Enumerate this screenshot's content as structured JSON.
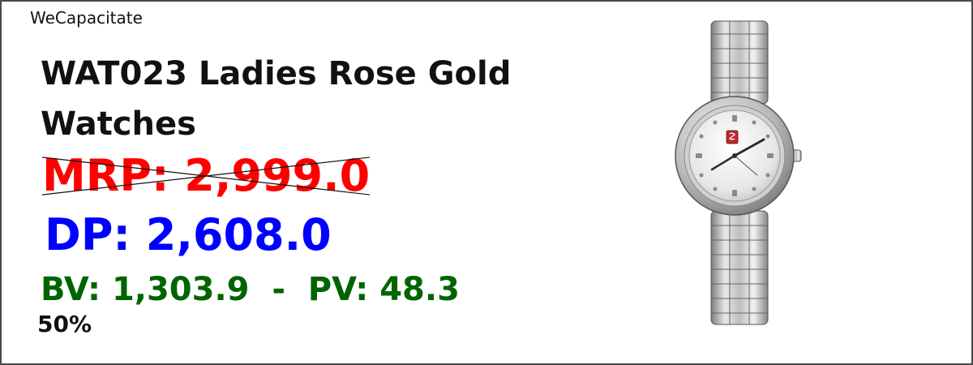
{
  "brand": "WeCapacitate",
  "product": {
    "title": "WAT023 Ladies Rose Gold Watches",
    "mrp": "MRP: 2,999.0",
    "dp": "DP: 2,608.0",
    "bv_pv": "BV: 1,303.9  -  PV: 48.3",
    "discount": "50%",
    "image_icon": "wristwatch-image"
  },
  "colors": {
    "mrp": "#ff0000",
    "dp": "#0000ff",
    "bv_pv": "#006400"
  }
}
